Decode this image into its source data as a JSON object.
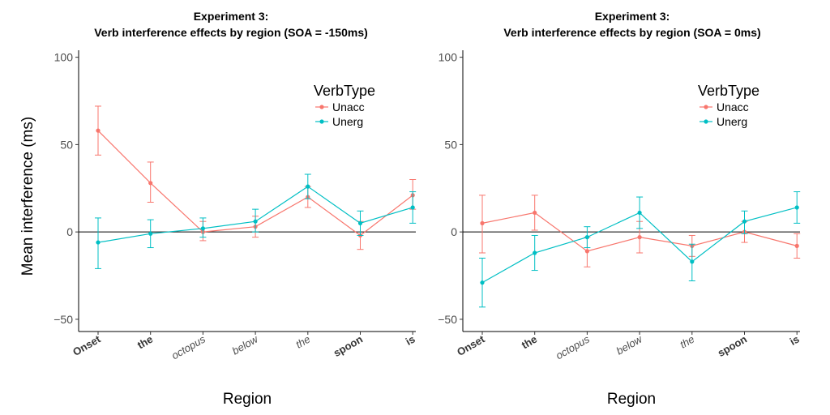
{
  "ylabel": "Mean interference (ms)",
  "legend_title": "VerbType",
  "colors": {
    "Unacc": "#F8766D",
    "Unerg": "#00BFC4"
  },
  "chart_data": [
    {
      "type": "line",
      "title_line1": "Experiment  3:",
      "title_line2": "Verb interference effects by region (SOA = -150ms)",
      "xlabel": "Region",
      "ylabel": "Mean interference (ms)",
      "categories": [
        "Onset",
        "the",
        "octopus",
        "below",
        "the",
        "spoon",
        "is"
      ],
      "category_styles": [
        "bold",
        "bold",
        "italic",
        "italic",
        "italic",
        "bold",
        "bold"
      ],
      "yticks": [
        -50,
        0,
        50,
        100
      ],
      "ylim": [
        -57,
        104
      ],
      "hline": 0,
      "legend_title": "VerbType",
      "series": [
        {
          "name": "Unacc",
          "values": [
            58,
            28,
            0,
            3,
            20,
            -2,
            21
          ],
          "lower": [
            44,
            17,
            -5,
            -3,
            14,
            -10,
            13
          ],
          "upper": [
            72,
            40,
            6,
            9,
            26,
            6,
            30
          ]
        },
        {
          "name": "Unerg",
          "values": [
            -6,
            -1,
            2,
            6,
            26,
            5,
            14
          ],
          "lower": [
            -21,
            -9,
            -3,
            0,
            19,
            -2,
            5
          ],
          "upper": [
            8,
            7,
            8,
            13,
            33,
            12,
            23
          ]
        }
      ]
    },
    {
      "type": "line",
      "title_line1": "Experiment  3:",
      "title_line2": "Verb interference effects by region (SOA = 0ms)",
      "xlabel": "Region",
      "ylabel": "",
      "categories": [
        "Onset",
        "the",
        "octopus",
        "below",
        "the",
        "spoon",
        "is"
      ],
      "category_styles": [
        "bold",
        "bold",
        "italic",
        "italic",
        "italic",
        "bold",
        "bold"
      ],
      "yticks": [
        -50,
        0,
        50,
        100
      ],
      "ylim": [
        -57,
        104
      ],
      "hline": 0,
      "legend_title": "VerbType",
      "series": [
        {
          "name": "Unacc",
          "values": [
            5,
            11,
            -11,
            -3,
            -8,
            0,
            -8
          ],
          "lower": [
            -12,
            1,
            -20,
            -12,
            -14,
            -6,
            -15
          ],
          "upper": [
            21,
            21,
            -3,
            6,
            -2,
            6,
            -1
          ]
        },
        {
          "name": "Unerg",
          "values": [
            -29,
            -12,
            -3,
            11,
            -17,
            6,
            14
          ],
          "lower": [
            -43,
            -22,
            -9,
            2,
            -28,
            -1,
            5
          ],
          "upper": [
            -15,
            -2,
            3,
            20,
            -7,
            12,
            23
          ]
        }
      ]
    }
  ]
}
